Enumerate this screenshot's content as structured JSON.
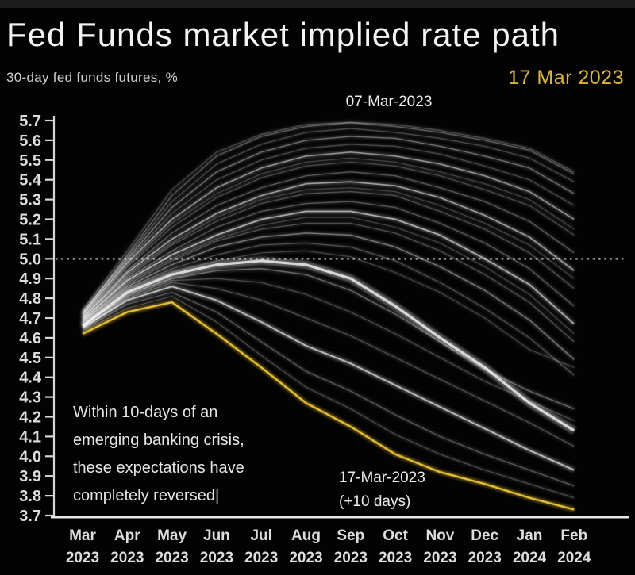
{
  "header": {
    "title": "Fed Funds market implied rate path",
    "subtitle": "30-day fed funds futures, %",
    "date_label": "17 Mar 2023"
  },
  "annotations": {
    "top_series_label": "07-Mar-2023",
    "bottom_series_label_line1": "17-Mar-2023",
    "bottom_series_label_line2": "(+10 days)",
    "note_line1": "Within 10-days of an",
    "note_line2": "emerging banking crisis,",
    "note_line3": "these expectations have",
    "note_line4": "completely reversed|"
  },
  "colors": {
    "background": "#030303",
    "accent_gold": "#ddb440",
    "highlight_line": "#e2bc35",
    "fan_line": "#ffffff",
    "axis": "#d6d6d6",
    "axis_bottom": "#e8e8e8",
    "tick_text": "#dedede",
    "dotted_line": "#919191",
    "annotation_text": "#ececec"
  },
  "chart_data": {
    "type": "line",
    "title": "Fed Funds market implied rate path",
    "ylabel": "30-day fed funds futures, %",
    "xlabel": "",
    "grid": false,
    "legend_position": "inline-annotations",
    "ylim": [
      3.7,
      5.7
    ],
    "ytick_step": 0.1,
    "reference_line_y": 5.0,
    "categories": [
      {
        "month": "Mar",
        "year": "2023"
      },
      {
        "month": "Apr",
        "year": "2023"
      },
      {
        "month": "May",
        "year": "2023"
      },
      {
        "month": "Jun",
        "year": "2023"
      },
      {
        "month": "Jul",
        "year": "2023"
      },
      {
        "month": "Aug",
        "year": "2023"
      },
      {
        "month": "Sep",
        "year": "2023"
      },
      {
        "month": "Oct",
        "year": "2023"
      },
      {
        "month": "Nov",
        "year": "2023"
      },
      {
        "month": "Dec",
        "year": "2023"
      },
      {
        "month": "Jan",
        "year": "2024"
      },
      {
        "month": "Feb",
        "year": "2024"
      }
    ],
    "highlight_series": {
      "name": "17-Mar-2023 (+10 days)",
      "color": "#e2bc35",
      "width": 2.4,
      "values": [
        4.62,
        4.73,
        4.78,
        4.62,
        4.45,
        4.27,
        4.15,
        4.01,
        3.92,
        3.86,
        3.79,
        3.73
      ]
    },
    "top_series_name": "07-Mar-2023",
    "fan_series": [
      {
        "alpha": 0.18,
        "width": 1.4,
        "values": [
          4.74,
          5.04,
          5.35,
          5.54,
          5.63,
          5.68,
          5.69,
          5.68,
          5.65,
          5.61,
          5.56,
          5.44
        ]
      },
      {
        "alpha": 0.25,
        "width": 1.4,
        "values": [
          4.72,
          5.02,
          5.32,
          5.52,
          5.62,
          5.67,
          5.69,
          5.67,
          5.64,
          5.6,
          5.55,
          5.43
        ]
      },
      {
        "alpha": 0.2,
        "width": 1.4,
        "values": [
          4.73,
          5.01,
          5.29,
          5.48,
          5.58,
          5.64,
          5.66,
          5.64,
          5.61,
          5.57,
          5.51,
          5.39
        ]
      },
      {
        "alpha": 0.33,
        "width": 1.4,
        "values": [
          4.73,
          5.0,
          5.26,
          5.44,
          5.54,
          5.6,
          5.62,
          5.61,
          5.57,
          5.52,
          5.46,
          5.33
        ]
      },
      {
        "alpha": 0.2,
        "width": 1.4,
        "values": [
          4.72,
          4.99,
          5.23,
          5.4,
          5.5,
          5.56,
          5.58,
          5.57,
          5.53,
          5.47,
          5.4,
          5.27
        ]
      },
      {
        "alpha": 0.45,
        "width": 1.6,
        "values": [
          4.72,
          4.98,
          5.2,
          5.36,
          5.46,
          5.52,
          5.54,
          5.52,
          5.48,
          5.42,
          5.34,
          5.2
        ]
      },
      {
        "alpha": 0.18,
        "width": 1.4,
        "values": [
          4.71,
          4.97,
          5.18,
          5.33,
          5.43,
          5.49,
          5.51,
          5.49,
          5.44,
          5.38,
          5.3,
          5.15
        ]
      },
      {
        "alpha": 0.2,
        "width": 1.4,
        "values": [
          4.71,
          4.96,
          5.16,
          5.31,
          5.41,
          5.47,
          5.49,
          5.47,
          5.42,
          5.35,
          5.27,
          5.12
        ]
      },
      {
        "alpha": 0.25,
        "width": 1.4,
        "values": [
          4.71,
          4.94,
          5.13,
          5.27,
          5.36,
          5.42,
          5.44,
          5.42,
          5.36,
          5.29,
          5.19,
          5.03
        ]
      },
      {
        "alpha": 0.5,
        "width": 1.6,
        "values": [
          4.7,
          4.93,
          5.1,
          5.23,
          5.32,
          5.38,
          5.39,
          5.37,
          5.31,
          5.22,
          5.11,
          4.94
        ]
      },
      {
        "alpha": 0.18,
        "width": 1.4,
        "values": [
          4.7,
          4.92,
          5.08,
          5.21,
          5.3,
          5.35,
          5.36,
          5.34,
          5.27,
          5.18,
          5.07,
          4.9
        ]
      },
      {
        "alpha": 0.22,
        "width": 1.4,
        "values": [
          4.7,
          4.91,
          5.07,
          5.19,
          5.28,
          5.33,
          5.34,
          5.32,
          5.24,
          5.15,
          5.03,
          4.85
        ]
      },
      {
        "alpha": 0.25,
        "width": 1.4,
        "values": [
          4.69,
          4.9,
          5.04,
          5.16,
          5.24,
          5.28,
          5.29,
          5.26,
          5.18,
          5.08,
          4.95,
          4.76
        ]
      },
      {
        "alpha": 0.55,
        "width": 1.8,
        "values": [
          4.69,
          4.89,
          5.02,
          5.12,
          5.2,
          5.24,
          5.24,
          5.2,
          5.12,
          5.0,
          4.87,
          4.67
        ]
      },
      {
        "alpha": 0.18,
        "width": 1.4,
        "values": [
          4.68,
          4.88,
          5.0,
          5.1,
          5.17,
          5.21,
          5.21,
          5.16,
          5.08,
          4.96,
          4.82,
          4.62
        ]
      },
      {
        "alpha": 0.22,
        "width": 1.4,
        "values": [
          4.68,
          4.87,
          4.99,
          5.09,
          5.15,
          5.18,
          5.18,
          5.13,
          5.04,
          4.92,
          4.78,
          4.58
        ]
      },
      {
        "alpha": 0.35,
        "width": 1.5,
        "values": [
          4.68,
          4.86,
          4.97,
          5.06,
          5.11,
          5.13,
          5.12,
          5.06,
          4.96,
          4.84,
          4.69,
          4.49
        ]
      },
      {
        "alpha": 0.22,
        "width": 1.4,
        "values": [
          4.67,
          4.85,
          4.95,
          5.02,
          5.07,
          5.08,
          5.06,
          4.99,
          4.88,
          4.75,
          4.6,
          4.41
        ]
      },
      {
        "alpha": 0.18,
        "width": 1.4,
        "values": [
          4.67,
          4.84,
          4.93,
          4.99,
          5.03,
          5.04,
          5.01,
          4.93,
          4.83,
          4.7,
          4.54,
          4.45
        ]
      },
      {
        "alpha": 0.75,
        "width": 3.2,
        "values": [
          4.66,
          4.83,
          4.92,
          4.97,
          4.99,
          4.97,
          4.9,
          4.76,
          4.6,
          4.45,
          4.27,
          4.13
        ]
      },
      {
        "alpha": 0.3,
        "width": 1.5,
        "values": [
          4.66,
          4.82,
          4.9,
          4.94,
          4.95,
          4.92,
          4.84,
          4.72,
          4.58,
          4.44,
          4.33,
          4.24
        ]
      },
      {
        "alpha": 0.2,
        "width": 1.4,
        "values": [
          4.66,
          4.81,
          4.89,
          4.9,
          4.88,
          4.82,
          4.73,
          4.62,
          4.5,
          4.38,
          4.28,
          4.18
        ]
      },
      {
        "alpha": 0.22,
        "width": 1.4,
        "values": [
          4.65,
          4.8,
          4.88,
          4.85,
          4.79,
          4.7,
          4.61,
          4.5,
          4.39,
          4.28,
          4.17,
          4.05
        ]
      },
      {
        "alpha": 0.6,
        "width": 2.0,
        "values": [
          4.65,
          4.79,
          4.86,
          4.79,
          4.68,
          4.56,
          4.47,
          4.36,
          4.25,
          4.14,
          4.03,
          3.93
        ]
      },
      {
        "alpha": 0.25,
        "width": 1.4,
        "values": [
          4.64,
          4.77,
          4.83,
          4.73,
          4.58,
          4.43,
          4.33,
          4.21,
          4.1,
          4.01,
          3.93,
          3.85
        ]
      },
      {
        "alpha": 0.2,
        "width": 1.4,
        "values": [
          4.63,
          4.75,
          4.81,
          4.68,
          4.51,
          4.35,
          4.24,
          4.11,
          4.01,
          3.93,
          3.86,
          3.79
        ]
      }
    ]
  }
}
